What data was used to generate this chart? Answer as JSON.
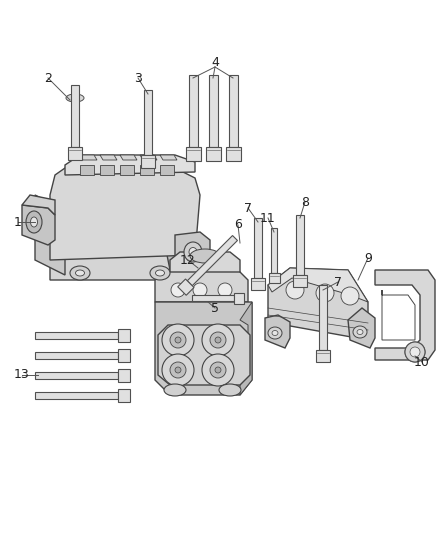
{
  "background_color": "#ffffff",
  "fig_width": 4.38,
  "fig_height": 5.33,
  "dpi": 100,
  "line_color": "#555555",
  "text_color": "#222222",
  "part_fill_light": "#e8e8e8",
  "part_fill_mid": "#d0d0d0",
  "part_fill_dark": "#b8b8b8",
  "part_edge": "#444444",
  "bolt_fill": "#e0e0e0",
  "bolt_edge": "#505050"
}
